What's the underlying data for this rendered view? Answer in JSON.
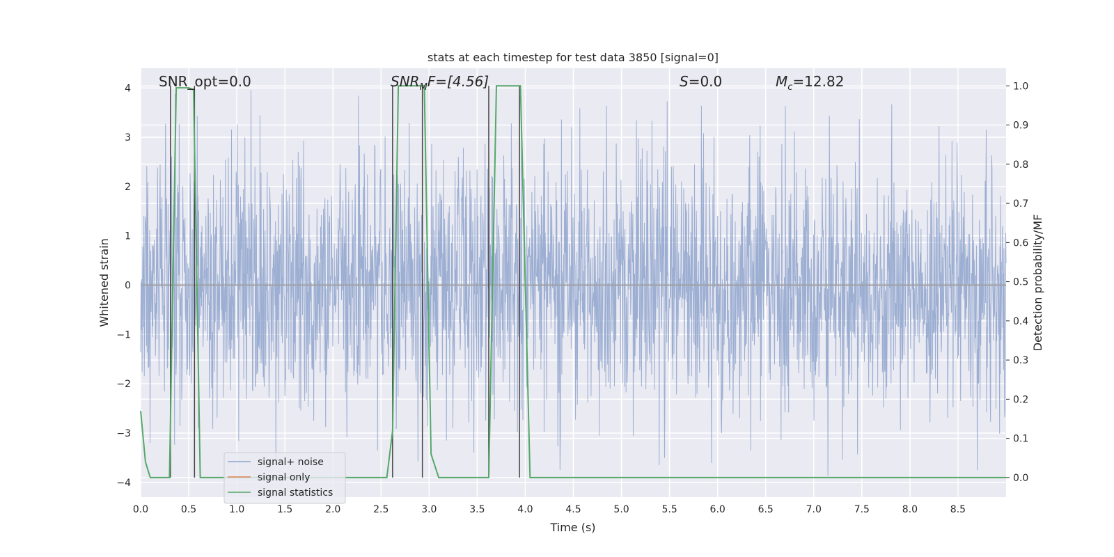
{
  "chart_data": {
    "type": "line",
    "title": "stats at each timestep for test data 3850 [signal=0]",
    "xlabel": "Time (s)",
    "ylabel_left": "Whitened strain",
    "ylabel_right": "Detection probability/MF",
    "xlim": [
      0,
      9.0
    ],
    "ylim_left": [
      -4.3,
      4.4
    ],
    "ylim_right": [
      -0.05,
      1.045
    ],
    "x_ticks": [
      0.0,
      0.5,
      1.0,
      1.5,
      2.0,
      2.5,
      3.0,
      3.5,
      4.0,
      4.5,
      5.0,
      5.5,
      6.0,
      6.5,
      7.0,
      7.5,
      8.0,
      8.5
    ],
    "x_tick_labels": [
      "0.0",
      "0.5",
      "1.0",
      "1.5",
      "2.0",
      "2.5",
      "3.0",
      "3.5",
      "4.0",
      "4.5",
      "5.0",
      "5.5",
      "6.0",
      "6.5",
      "7.0",
      "7.5",
      "8.0",
      "8.5"
    ],
    "y_left_ticks": [
      4,
      3,
      2,
      1,
      0,
      -1,
      -2,
      -3,
      -4
    ],
    "y_left_tick_labels": [
      "4",
      "3",
      "2",
      "1",
      "0",
      "−1",
      "−2",
      "−3",
      "−4"
    ],
    "y_right_ticks": [
      1.0,
      0.9,
      0.8,
      0.7,
      0.6,
      0.5,
      0.4,
      0.3,
      0.2,
      0.1,
      0.0
    ],
    "y_right_tick_labels": [
      "1.0",
      "0.9",
      "0.8",
      "0.7",
      "0.6",
      "0.5",
      "0.4",
      "0.3",
      "0.2",
      "0.1",
      "0.0"
    ],
    "grid": true,
    "legend": {
      "placement": "lower-left",
      "entries": [
        {
          "label": "signal+ noise",
          "color": "#8ea3cc"
        },
        {
          "label": "signal only",
          "color": "#dd8452"
        },
        {
          "label": "signal statistics",
          "color": "#55a868"
        }
      ]
    },
    "annotations": {
      "snr_opt": "SNR_opt=0.0",
      "snr_mf_main": "SNR",
      "snr_mf_sub": "M",
      "snr_mf_rest": "F=[4.56]",
      "s_main": "S",
      "s_rest": "=0.0",
      "mc_main": "M",
      "mc_sub": "c",
      "mc_rest": "=12.82"
    },
    "series": [
      {
        "name": "signal+ noise",
        "axis": "left",
        "style": "noise",
        "color": "#8ea3cc",
        "typical_abs": 1.6,
        "peak_abs": 4.0
      },
      {
        "name": "signal only",
        "axis": "left",
        "color": "#dd8452",
        "x": [
          0.0,
          9.0
        ],
        "y": [
          0.0,
          0.0
        ]
      },
      {
        "name": "signal statistics",
        "axis": "right",
        "color": "#55a868",
        "x": [
          0.0,
          0.05,
          0.1,
          0.2,
          0.25,
          0.3,
          0.37,
          0.4,
          0.5,
          0.55,
          0.62,
          0.7,
          1.0,
          1.5,
          2.0,
          2.5,
          2.56,
          2.62,
          2.68,
          2.75,
          2.9,
          2.95,
          3.02,
          3.1,
          3.3,
          3.5,
          3.62,
          3.7,
          3.75,
          3.9,
          3.95,
          4.05,
          4.1,
          5.0,
          6.0,
          7.0,
          8.0,
          9.0
        ],
        "y": [
          0.17,
          0.04,
          0.0,
          0.0,
          0.0,
          0.0,
          0.995,
          0.995,
          0.995,
          0.99,
          0.0,
          0.0,
          0.0,
          0.0,
          0.0,
          0.0,
          0.0,
          0.12,
          1.0,
          1.0,
          1.0,
          1.0,
          0.06,
          0.0,
          0.0,
          0.0,
          0.0,
          1.0,
          1.0,
          1.0,
          1.0,
          0.0,
          0.0,
          0.0,
          0.0,
          0.0,
          0.0,
          0.0
        ]
      }
    ],
    "vertical_markers": {
      "color": "#444444",
      "x": [
        0.31,
        0.56,
        2.62,
        2.93,
        3.62,
        3.94
      ],
      "y_range_right": [
        0.0,
        1.0
      ]
    }
  }
}
